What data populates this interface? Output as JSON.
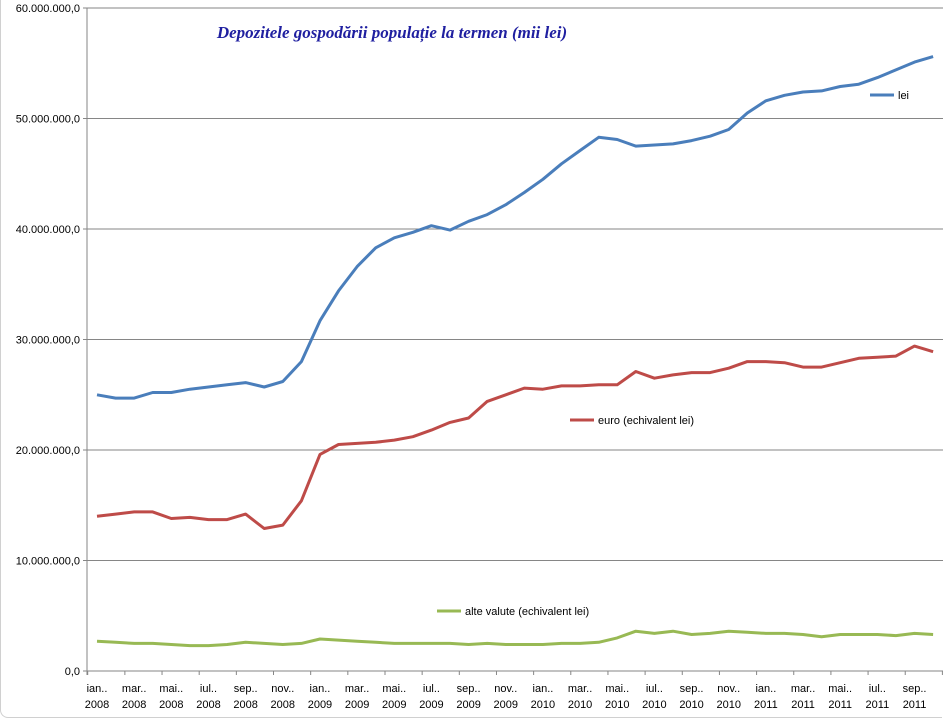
{
  "chart_data": {
    "type": "line",
    "title": "Depozitele gospodării populație la termen (mii lei)",
    "xlabel": "",
    "ylabel": "",
    "ylim": [
      0,
      60000000
    ],
    "y_ticks": [
      "0,0",
      "10.000.000,0",
      "20.000.000,0",
      "30.000.000,0",
      "40.000.000,0",
      "50.000.000,0",
      "60.000.000,0"
    ],
    "x_tick_labels": [
      [
        "ian..",
        "2008"
      ],
      [
        "mar..",
        "2008"
      ],
      [
        "mai..",
        "2008"
      ],
      [
        "iul..",
        "2008"
      ],
      [
        "sep..",
        "2008"
      ],
      [
        "nov..",
        "2008"
      ],
      [
        "ian..",
        "2009"
      ],
      [
        "mar..",
        "2009"
      ],
      [
        "mai..",
        "2009"
      ],
      [
        "iul..",
        "2009"
      ],
      [
        "sep..",
        "2009"
      ],
      [
        "nov..",
        "2009"
      ],
      [
        "ian..",
        "2010"
      ],
      [
        "mar..",
        "2010"
      ],
      [
        "mai..",
        "2010"
      ],
      [
        "iul..",
        "2010"
      ],
      [
        "sep..",
        "2010"
      ],
      [
        "nov..",
        "2010"
      ],
      [
        "ian..",
        "2011"
      ],
      [
        "mar..",
        "2011"
      ],
      [
        "mai..",
        "2011"
      ],
      [
        "iul..",
        "2011"
      ],
      [
        "sep..",
        "2011"
      ]
    ],
    "x_count": 46,
    "grid": true,
    "series": [
      {
        "name": "lei",
        "color": "#4a7ebb",
        "values_millions": [
          25.0,
          24.7,
          24.7,
          25.2,
          25.2,
          25.5,
          25.7,
          25.9,
          26.1,
          25.7,
          26.2,
          28.0,
          31.7,
          34.4,
          36.6,
          38.3,
          39.2,
          39.7,
          40.3,
          39.9,
          40.7,
          41.3,
          42.2,
          43.3,
          44.5,
          45.9,
          47.1,
          48.3,
          48.1,
          47.5,
          47.6,
          47.7,
          48.0,
          48.4,
          49.0,
          50.5,
          51.6,
          52.1,
          52.4,
          52.5,
          52.9,
          53.1,
          53.7,
          54.4,
          55.1,
          55.6
        ]
      },
      {
        "name": "euro (echivalent lei)",
        "color": "#be4b48",
        "values_millions": [
          14.0,
          14.2,
          14.4,
          14.4,
          13.8,
          13.9,
          13.7,
          13.7,
          14.2,
          12.9,
          13.2,
          15.4,
          19.6,
          20.5,
          20.6,
          20.7,
          20.9,
          21.2,
          21.8,
          22.5,
          22.9,
          24.4,
          25.0,
          25.6,
          25.5,
          25.8,
          25.8,
          25.9,
          25.9,
          27.1,
          26.5,
          26.8,
          27.0,
          27.0,
          27.4,
          28.0,
          28.0,
          27.9,
          27.5,
          27.5,
          27.9,
          28.3,
          28.4,
          28.5,
          29.4,
          28.9
        ]
      },
      {
        "name": "alte valute (echivalent lei)",
        "color": "#98b954",
        "values_millions": [
          2.7,
          2.6,
          2.5,
          2.5,
          2.4,
          2.3,
          2.3,
          2.4,
          2.6,
          2.5,
          2.4,
          2.5,
          2.9,
          2.8,
          2.7,
          2.6,
          2.5,
          2.5,
          2.5,
          2.5,
          2.4,
          2.5,
          2.4,
          2.4,
          2.4,
          2.5,
          2.5,
          2.6,
          3.0,
          3.6,
          3.4,
          3.6,
          3.3,
          3.4,
          3.6,
          3.5,
          3.4,
          3.4,
          3.3,
          3.1,
          3.3,
          3.3,
          3.3,
          3.2,
          3.4,
          3.3
        ]
      }
    ]
  }
}
